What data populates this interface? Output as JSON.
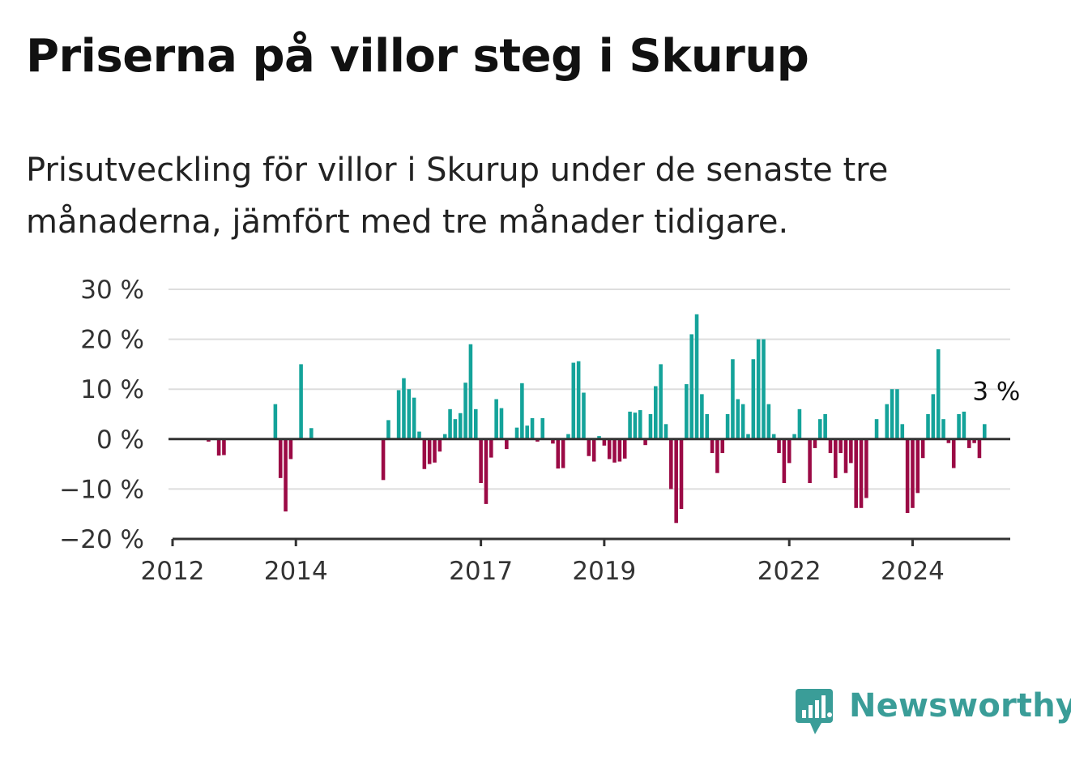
{
  "header": {
    "title": "Priserna på villor steg i Skurup",
    "subtitle": "Prisutveckling för villor i Skurup under de senaste tre månaderna, jämfört med tre månader tidigare."
  },
  "brand": {
    "name": "Newsworthy",
    "icon": "newsworthy-logo-icon",
    "color": "#3a9d98"
  },
  "chart_data": {
    "type": "bar",
    "title": "",
    "xlabel": "",
    "ylabel": "",
    "unit": "%",
    "x_start": "2012-01",
    "x_end": "2025-08",
    "ylim": [
      -20,
      30
    ],
    "y_ticks": [
      {
        "value": 30,
        "label": "30 %"
      },
      {
        "value": 20,
        "label": "20 %"
      },
      {
        "value": 10,
        "label": "10 %"
      },
      {
        "value": 0,
        "label": "0 %"
      },
      {
        "value": -10,
        "label": "−10 %"
      },
      {
        "value": -20,
        "label": "−20 %"
      }
    ],
    "x_ticks": [
      {
        "date": "2012-01",
        "label": "2012"
      },
      {
        "date": "2014-01",
        "label": "2014"
      },
      {
        "date": "2017-01",
        "label": "2017"
      },
      {
        "date": "2019-01",
        "label": "2019"
      },
      {
        "date": "2022-01",
        "label": "2022"
      },
      {
        "date": "2024-01",
        "label": "2024"
      }
    ],
    "grid": true,
    "legend": "none",
    "colors": {
      "positive": "#14a39a",
      "negative": "#9b0a45",
      "grid": "#dddddd",
      "axis": "#333333"
    },
    "end_label": {
      "date": "2025-06",
      "text": "3 %"
    },
    "series": [
      {
        "values": [
          {
            "x": "2012-08",
            "y": -0.5
          },
          {
            "x": "2012-10",
            "y": -3.3
          },
          {
            "x": "2012-11",
            "y": -3.2
          },
          {
            "x": "2013-09",
            "y": 7.0
          },
          {
            "x": "2013-10",
            "y": -7.8
          },
          {
            "x": "2013-11",
            "y": -14.5
          },
          {
            "x": "2013-12",
            "y": -4.0
          },
          {
            "x": "2014-02",
            "y": 15.0
          },
          {
            "x": "2014-04",
            "y": 2.2
          },
          {
            "x": "2015-06",
            "y": -8.2
          },
          {
            "x": "2015-07",
            "y": 3.8
          },
          {
            "x": "2015-09",
            "y": 9.8
          },
          {
            "x": "2015-10",
            "y": 12.2
          },
          {
            "x": "2015-11",
            "y": 10.0
          },
          {
            "x": "2015-12",
            "y": 8.3
          },
          {
            "x": "2016-01",
            "y": 1.5
          },
          {
            "x": "2016-02",
            "y": -6.0
          },
          {
            "x": "2016-03",
            "y": -5.0
          },
          {
            "x": "2016-04",
            "y": -4.7
          },
          {
            "x": "2016-05",
            "y": -2.5
          },
          {
            "x": "2016-06",
            "y": 1.0
          },
          {
            "x": "2016-07",
            "y": 6.0
          },
          {
            "x": "2016-08",
            "y": 4.0
          },
          {
            "x": "2016-09",
            "y": 5.2
          },
          {
            "x": "2016-10",
            "y": 11.3
          },
          {
            "x": "2016-11",
            "y": 19.0
          },
          {
            "x": "2016-12",
            "y": 6.0
          },
          {
            "x": "2017-01",
            "y": -8.8
          },
          {
            "x": "2017-02",
            "y": -13.0
          },
          {
            "x": "2017-03",
            "y": -3.7
          },
          {
            "x": "2017-04",
            "y": 8.0
          },
          {
            "x": "2017-05",
            "y": 6.2
          },
          {
            "x": "2017-06",
            "y": -2.0
          },
          {
            "x": "2017-08",
            "y": 2.3
          },
          {
            "x": "2017-09",
            "y": 11.2
          },
          {
            "x": "2017-10",
            "y": 2.7
          },
          {
            "x": "2017-11",
            "y": 4.2
          },
          {
            "x": "2017-12",
            "y": -0.5
          },
          {
            "x": "2018-01",
            "y": 4.2
          },
          {
            "x": "2018-03",
            "y": -0.9
          },
          {
            "x": "2018-04",
            "y": -5.9
          },
          {
            "x": "2018-05",
            "y": -5.8
          },
          {
            "x": "2018-06",
            "y": 1.0
          },
          {
            "x": "2018-07",
            "y": 15.3
          },
          {
            "x": "2018-08",
            "y": 15.6
          },
          {
            "x": "2018-09",
            "y": 9.3
          },
          {
            "x": "2018-10",
            "y": -3.4
          },
          {
            "x": "2018-11",
            "y": -4.5
          },
          {
            "x": "2018-12",
            "y": 0.6
          },
          {
            "x": "2019-01",
            "y": -1.3
          },
          {
            "x": "2019-02",
            "y": -4.0
          },
          {
            "x": "2019-03",
            "y": -4.7
          },
          {
            "x": "2019-04",
            "y": -4.5
          },
          {
            "x": "2019-05",
            "y": -3.9
          },
          {
            "x": "2019-06",
            "y": 5.5
          },
          {
            "x": "2019-07",
            "y": 5.3
          },
          {
            "x": "2019-08",
            "y": 5.8
          },
          {
            "x": "2019-09",
            "y": -1.2
          },
          {
            "x": "2019-10",
            "y": 5.0
          },
          {
            "x": "2019-11",
            "y": 10.6
          },
          {
            "x": "2019-12",
            "y": 15.0
          },
          {
            "x": "2020-01",
            "y": 3.0
          },
          {
            "x": "2020-02",
            "y": -10.0
          },
          {
            "x": "2020-03",
            "y": -16.8
          },
          {
            "x": "2020-04",
            "y": -14.0
          },
          {
            "x": "2020-05",
            "y": 11.0
          },
          {
            "x": "2020-06",
            "y": 21.0
          },
          {
            "x": "2020-07",
            "y": 25.0
          },
          {
            "x": "2020-08",
            "y": 9.0
          },
          {
            "x": "2020-09",
            "y": 5.0
          },
          {
            "x": "2020-10",
            "y": -2.8
          },
          {
            "x": "2020-11",
            "y": -6.8
          },
          {
            "x": "2020-12",
            "y": -2.8
          },
          {
            "x": "2021-01",
            "y": 5.0
          },
          {
            "x": "2021-02",
            "y": 16.0
          },
          {
            "x": "2021-03",
            "y": 8.0
          },
          {
            "x": "2021-04",
            "y": 7.0
          },
          {
            "x": "2021-05",
            "y": 1.0
          },
          {
            "x": "2021-06",
            "y": 16.0
          },
          {
            "x": "2021-07",
            "y": 20.0
          },
          {
            "x": "2021-08",
            "y": 20.0
          },
          {
            "x": "2021-09",
            "y": 7.0
          },
          {
            "x": "2021-10",
            "y": 1.0
          },
          {
            "x": "2021-11",
            "y": -2.8
          },
          {
            "x": "2021-12",
            "y": -8.8
          },
          {
            "x": "2022-01",
            "y": -4.8
          },
          {
            "x": "2022-02",
            "y": 1.0
          },
          {
            "x": "2022-03",
            "y": 6.0
          },
          {
            "x": "2022-05",
            "y": -8.8
          },
          {
            "x": "2022-06",
            "y": -1.8
          },
          {
            "x": "2022-07",
            "y": 4.0
          },
          {
            "x": "2022-08",
            "y": 5.0
          },
          {
            "x": "2022-09",
            "y": -2.8
          },
          {
            "x": "2022-10",
            "y": -7.8
          },
          {
            "x": "2022-11",
            "y": -2.8
          },
          {
            "x": "2022-12",
            "y": -6.8
          },
          {
            "x": "2023-01",
            "y": -4.8
          },
          {
            "x": "2023-02",
            "y": -13.8
          },
          {
            "x": "2023-03",
            "y": -13.8
          },
          {
            "x": "2023-04",
            "y": -11.8
          },
          {
            "x": "2023-06",
            "y": 4.0
          },
          {
            "x": "2023-08",
            "y": 7.0
          },
          {
            "x": "2023-09",
            "y": 10.0
          },
          {
            "x": "2023-10",
            "y": 10.0
          },
          {
            "x": "2023-11",
            "y": 3.0
          },
          {
            "x": "2023-12",
            "y": -14.8
          },
          {
            "x": "2024-01",
            "y": -13.8
          },
          {
            "x": "2024-02",
            "y": -10.8
          },
          {
            "x": "2024-03",
            "y": -3.8
          },
          {
            "x": "2024-04",
            "y": 5.0
          },
          {
            "x": "2024-05",
            "y": 9.0
          },
          {
            "x": "2024-06",
            "y": 18.0
          },
          {
            "x": "2024-07",
            "y": 4.0
          },
          {
            "x": "2024-08",
            "y": -0.8
          },
          {
            "x": "2024-09",
            "y": -5.8
          },
          {
            "x": "2024-10",
            "y": 5.0
          },
          {
            "x": "2024-11",
            "y": 5.5
          },
          {
            "x": "2024-12",
            "y": -1.8
          },
          {
            "x": "2025-01",
            "y": -0.8
          },
          {
            "x": "2025-02",
            "y": -3.8
          },
          {
            "x": "2025-03",
            "y": 3.0
          }
        ]
      }
    ]
  }
}
